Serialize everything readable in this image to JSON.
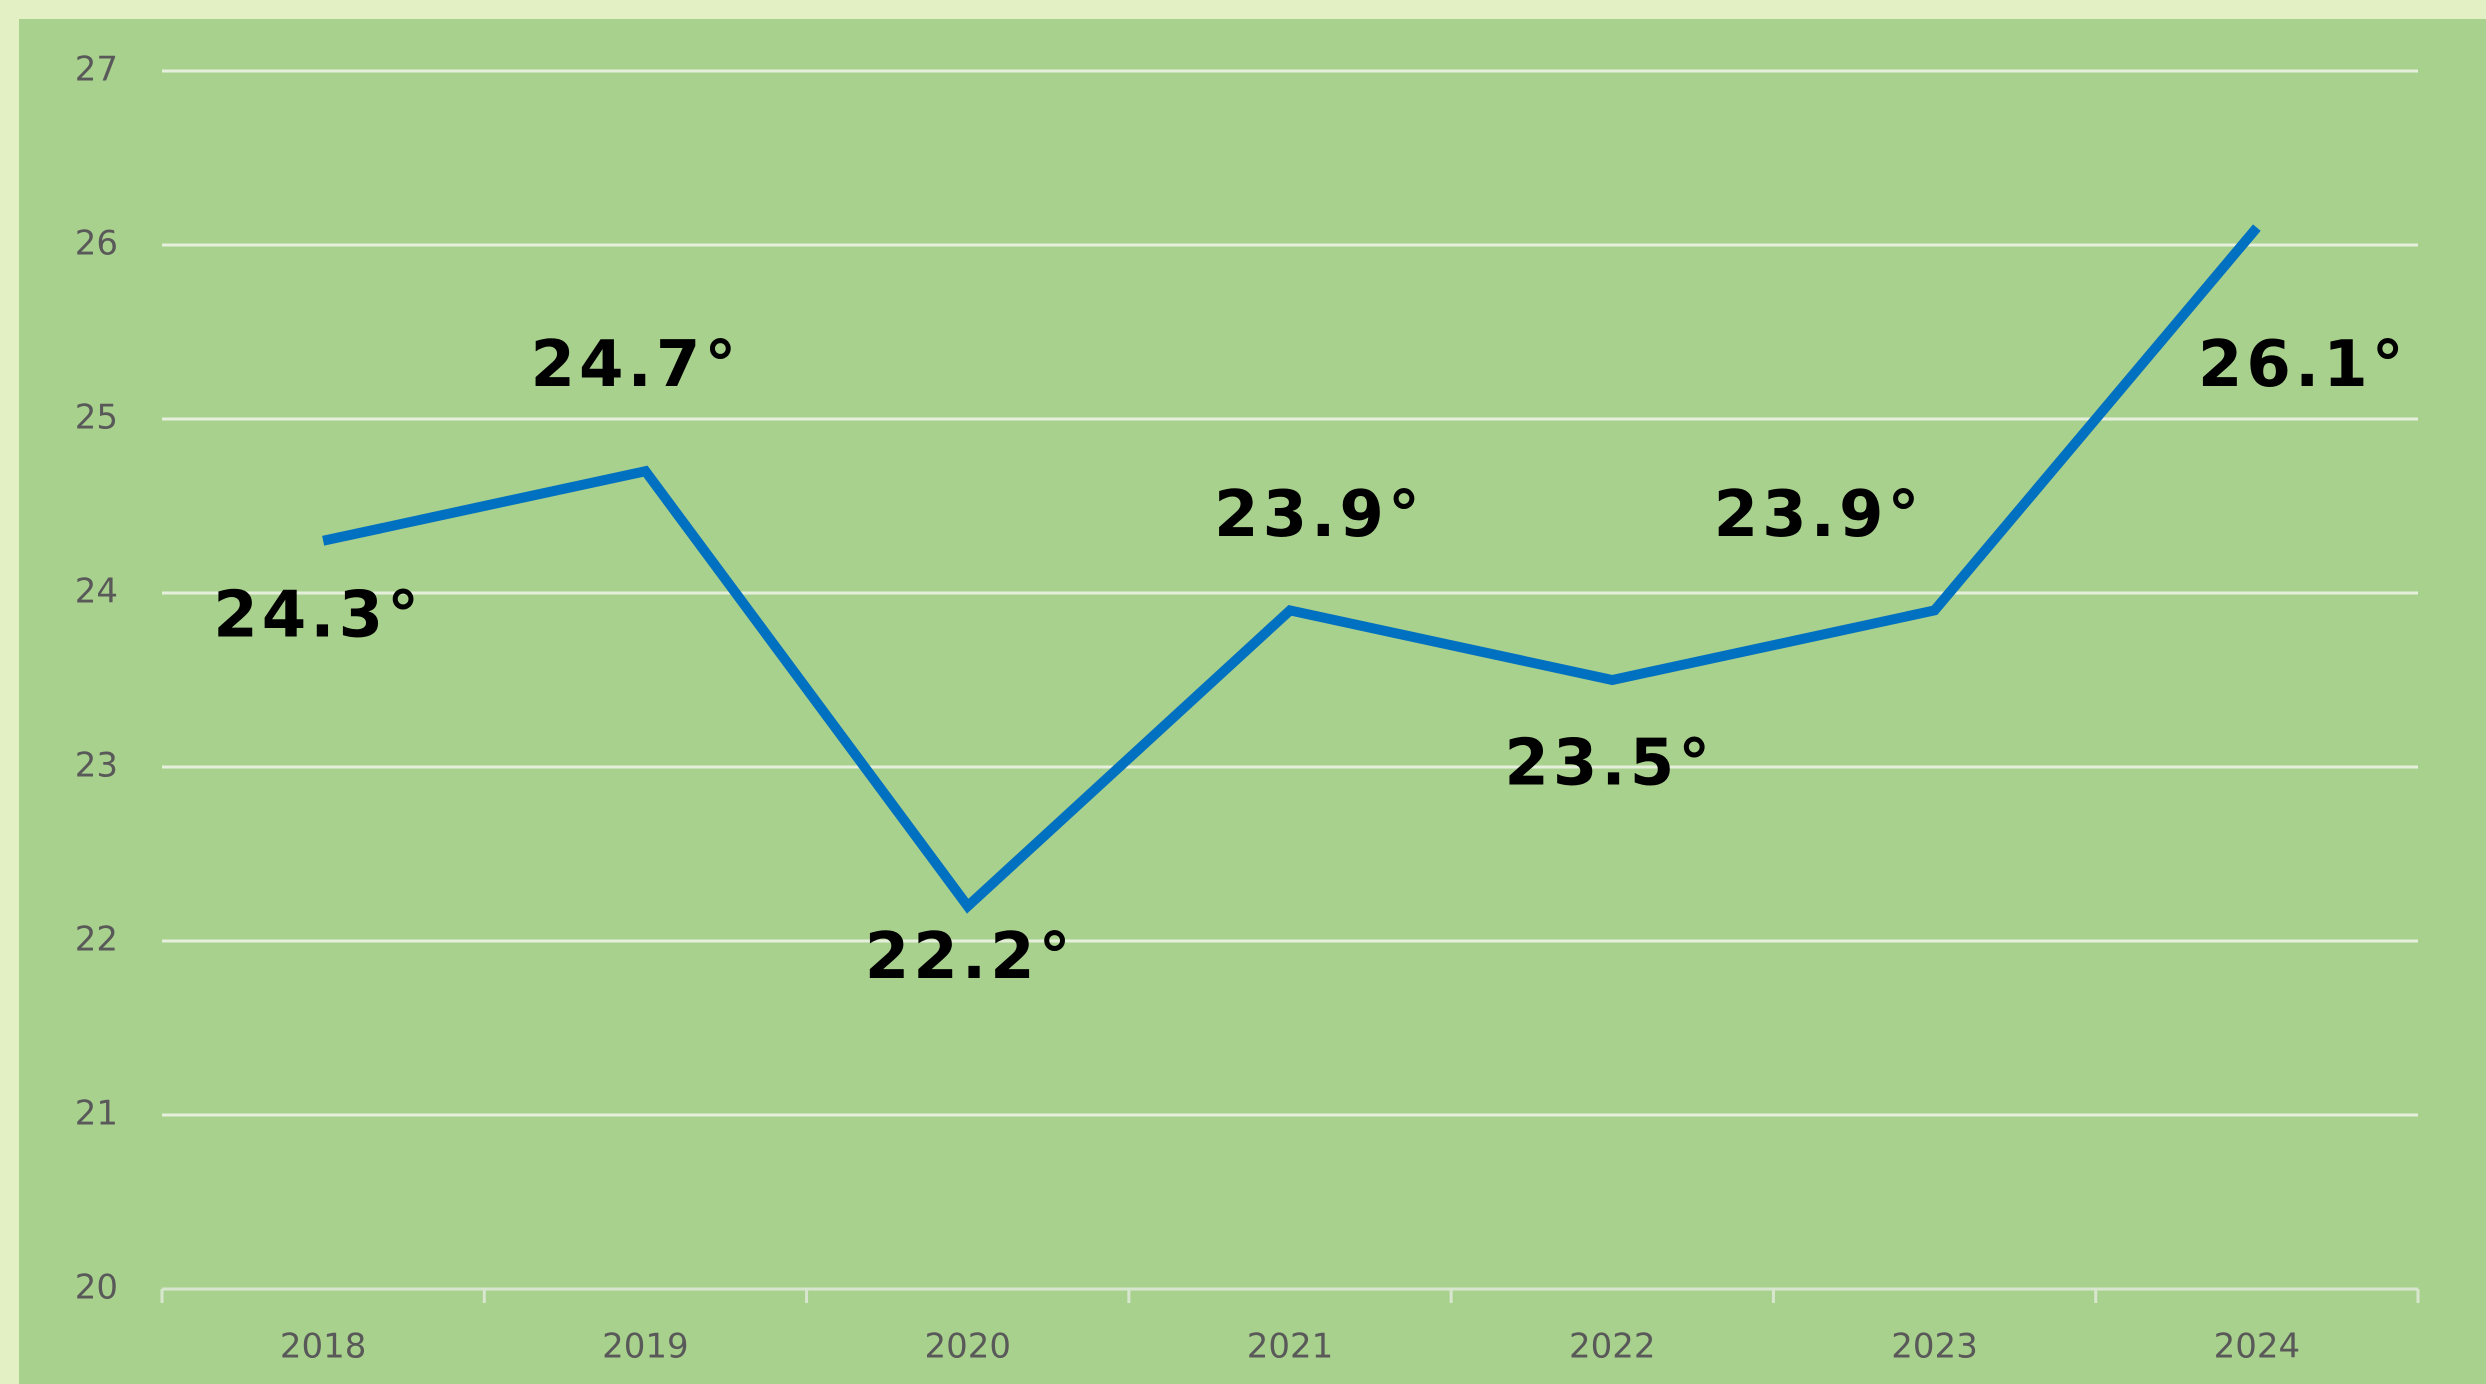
{
  "chart_data": {
    "type": "line",
    "categories": [
      "2018",
      "2019",
      "2020",
      "2021",
      "2022",
      "2023",
      "2024"
    ],
    "values": [
      24.3,
      24.7,
      22.2,
      23.9,
      23.5,
      23.9,
      26.1
    ],
    "value_labels": [
      "24.3°",
      "24.7°",
      "22.2°",
      "23.9°",
      "23.5°",
      "23.9°",
      "26.1°"
    ],
    "color": "#0070c0",
    "ylim": [
      20,
      27
    ],
    "yticks": [
      20,
      21,
      22,
      23,
      24,
      25,
      26,
      27
    ],
    "grid": true
  }
}
